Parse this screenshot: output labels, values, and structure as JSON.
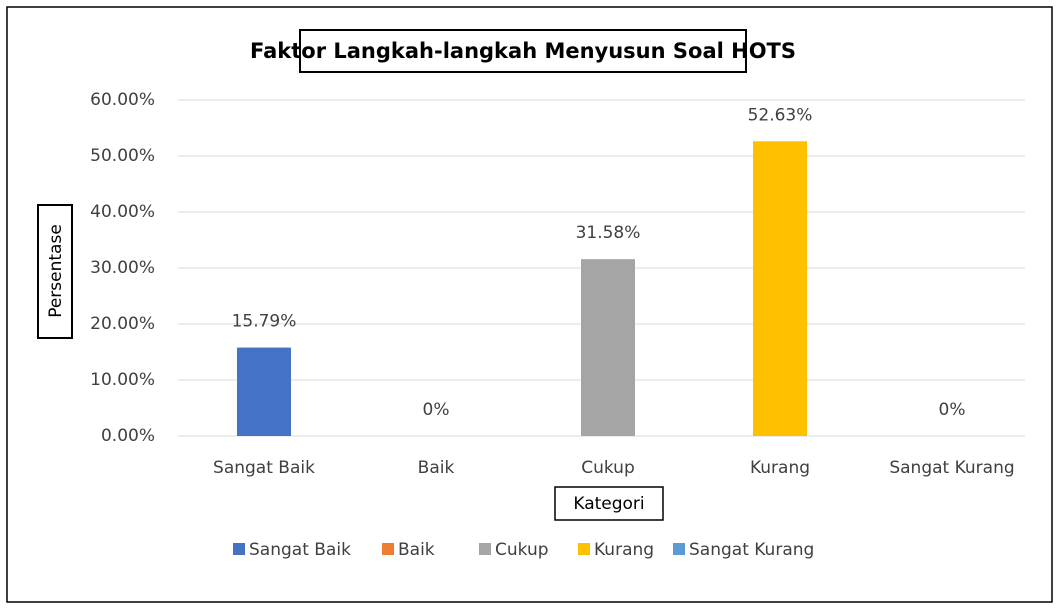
{
  "chart_data": {
    "type": "bar",
    "title": "Faktor Langkah-langkah Menyusun Soal HOTS",
    "x_label": "Kategori",
    "y_label": "Persentase",
    "categories": [
      "Sangat Baik",
      "Baik",
      "Cukup",
      "Kurang",
      "Sangat Kurang"
    ],
    "values": [
      15.79,
      0,
      31.58,
      52.63,
      0
    ],
    "value_labels": [
      "15.79%",
      "0%",
      "31.58%",
      "52.63%",
      "0%"
    ],
    "colors": [
      "#4472c4",
      "#ed7d31",
      "#a5a5a5",
      "#ffc000",
      "#5b9bd5"
    ],
    "ylim": [
      0,
      60
    ],
    "yticks": [
      {
        "value": 0,
        "label": "0.00%"
      },
      {
        "value": 10,
        "label": "10.00%"
      },
      {
        "value": 20,
        "label": "20.00%"
      },
      {
        "value": 30,
        "label": "30.00%"
      },
      {
        "value": 40,
        "label": "40.00%"
      },
      {
        "value": 50,
        "label": "50.00%"
      },
      {
        "value": 60,
        "label": "60.00%"
      }
    ],
    "grid": true,
    "legend": "bottom"
  }
}
